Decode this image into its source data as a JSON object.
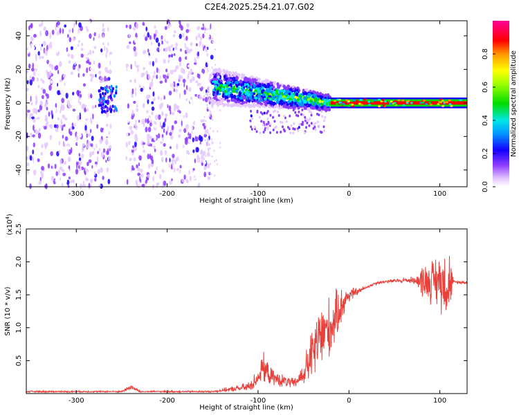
{
  "title": "C2E4.2025.254.21.07.G02",
  "chart_data": [
    {
      "type": "heatmap",
      "name": "spectrogram",
      "xlabel": "Height of straight line (km)",
      "ylabel": "Frequency (Hz)",
      "xlim": [
        -355,
        130
      ],
      "ylim": [
        -50,
        49
      ],
      "xticks": [
        -300,
        -200,
        -100,
        0,
        100
      ],
      "yticks": [
        -40,
        -20,
        0,
        20,
        40
      ],
      "colorbar": {
        "label": "Normalized spectral amplitude",
        "range": [
          0,
          1
        ],
        "ticks": [
          0.0,
          0.2,
          0.4,
          0.6,
          0.8
        ]
      },
      "features": [
        {
          "region": "noise",
          "x_range": [
            -355,
            -150
          ],
          "freq_range": [
            -50,
            49
          ],
          "gap_x_range": [
            -262,
            -245
          ]
        },
        {
          "region": "signal-spread",
          "x_range": [
            -150,
            -20
          ],
          "freq_center": [
            10,
            0
          ],
          "freq_halfwidth": [
            8,
            3
          ]
        },
        {
          "region": "signal-tone",
          "x_range": [
            -20,
            130
          ],
          "freq_center": 0,
          "freq_halfwidth": 1
        }
      ]
    },
    {
      "type": "line",
      "name": "snr",
      "xlabel": "Height of straight line (km)",
      "ylabel": "SNR (10 * v/v)",
      "scale_label": "(x10",
      "scale_exp": "4",
      "scale_suffix": ")",
      "xlim": [
        -355,
        130
      ],
      "ylim": [
        0,
        2.5
      ],
      "xticks": [
        -300,
        -200,
        -100,
        0,
        100
      ],
      "yticks": [
        0.5,
        1.0,
        1.5,
        2.0,
        2.5
      ],
      "color": "#e8403a",
      "envelope": {
        "x": [
          -355,
          -250,
          -240,
          -230,
          -150,
          -110,
          -100,
          -95,
          -85,
          -75,
          -60,
          -50,
          -40,
          -30,
          -20,
          -10,
          0,
          10,
          20,
          30,
          40,
          60,
          80,
          90,
          100,
          110,
          120,
          130
        ],
        "y": [
          0.03,
          0.03,
          0.1,
          0.03,
          0.03,
          0.1,
          0.25,
          0.4,
          0.25,
          0.2,
          0.15,
          0.3,
          0.6,
          0.9,
          1.0,
          1.3,
          1.5,
          1.55,
          1.62,
          1.68,
          1.7,
          1.72,
          1.72,
          1.7,
          1.72,
          1.7,
          1.69,
          1.69
        ]
      },
      "noise": {
        "x": [
          -355,
          -250,
          -240,
          -230,
          -150,
          -120,
          -100,
          -95,
          -85,
          -75,
          -60,
          -50,
          -40,
          -30,
          -20,
          -10,
          0,
          10,
          20,
          30,
          40,
          60,
          75,
          80,
          90,
          100,
          110,
          115,
          130
        ],
        "amp": [
          0.01,
          0.01,
          0.04,
          0.01,
          0.01,
          0.04,
          0.1,
          0.18,
          0.1,
          0.08,
          0.06,
          0.14,
          0.35,
          0.45,
          0.35,
          0.25,
          0.1,
          0.04,
          0.02,
          0.02,
          0.02,
          0.03,
          0.05,
          0.2,
          0.25,
          0.35,
          0.45,
          0.02,
          0.02
        ]
      }
    }
  ]
}
